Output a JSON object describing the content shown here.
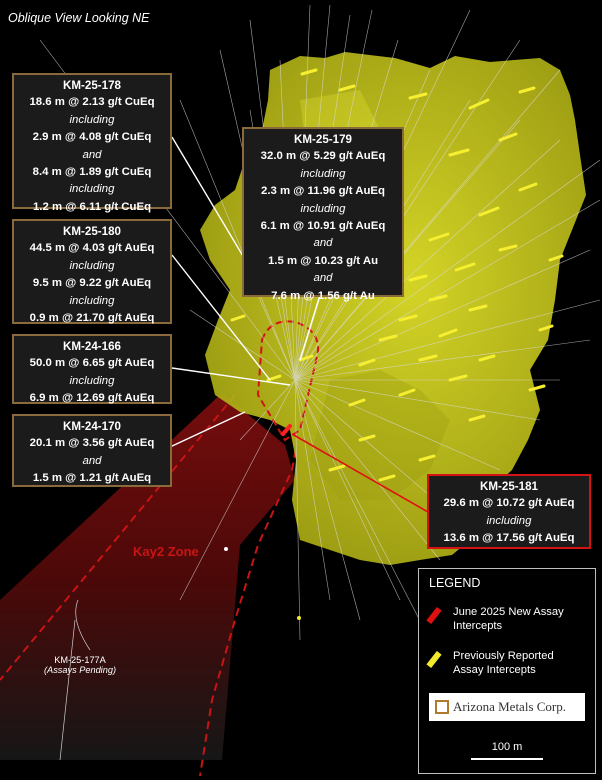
{
  "view_title": "Oblique View Looking NE",
  "callouts": {
    "km25_178": {
      "hole": "KM-25-178",
      "lines": [
        "18.6 m @ 2.13 g/t CuEq",
        "including",
        "2.9 m @ 4.08 g/t CuEq",
        "and",
        "8.4 m @ 1.89 g/t CuEq",
        "including",
        "1.2 m @ 6.11 g/t CuEq"
      ]
    },
    "km25_179": {
      "hole": "KM-25-179",
      "lines": [
        "32.0 m @ 5.29 g/t AuEq",
        "including",
        "2.3 m @ 11.96 g/t AuEq",
        "including",
        "6.1 m @ 10.91 g/t AuEq",
        "and",
        "1.5 m @ 10.23 g/t Au",
        "and",
        "7.6 m @ 1.56 g/t Au"
      ]
    },
    "km25_180": {
      "hole": "KM-25-180",
      "lines": [
        "44.5 m @ 4.03 g/t AuEq",
        "including",
        "9.5 m @ 9.22 g/t AuEq",
        "including",
        "0.9 m @ 21.70 g/t AuEq"
      ]
    },
    "km24_166": {
      "hole": "KM-24-166",
      "lines": [
        "50.0 m @ 6.65 g/t AuEq",
        "including",
        "6.9 m @ 12.69 g/t AuEq"
      ]
    },
    "km24_170": {
      "hole": "KM-24-170",
      "lines": [
        "20.1 m @ 3.56 g/t AuEq",
        "and",
        "1.5 m @ 1.21 g/t AuEq"
      ]
    },
    "km25_181": {
      "hole": "KM-25-181",
      "lines": [
        "29.6 m @ 10.72 g/t AuEq",
        "including",
        "13.6 m @ 17.56 g/t AuEq"
      ]
    }
  },
  "zone_label": "Kay2 Zone",
  "pending_hole": {
    "hole": "KM-25-177A",
    "note": "(Assays Pending)"
  },
  "legend": {
    "title": "LEGEND",
    "items": [
      {
        "label": "June 2025 New Assay Intercepts",
        "color": "#e01010"
      },
      {
        "label": "Previously Reported Assay Intercepts",
        "color": "#f2ea2a"
      }
    ],
    "logo_text": "Arizona Metals Corp.",
    "scale_label": "100 m"
  },
  "colors": {
    "orebody": "#d6d61e",
    "new_intercept": "#e01010",
    "previous_intercept": "#f2ea2a",
    "callout_border": "#8a6a3a"
  }
}
